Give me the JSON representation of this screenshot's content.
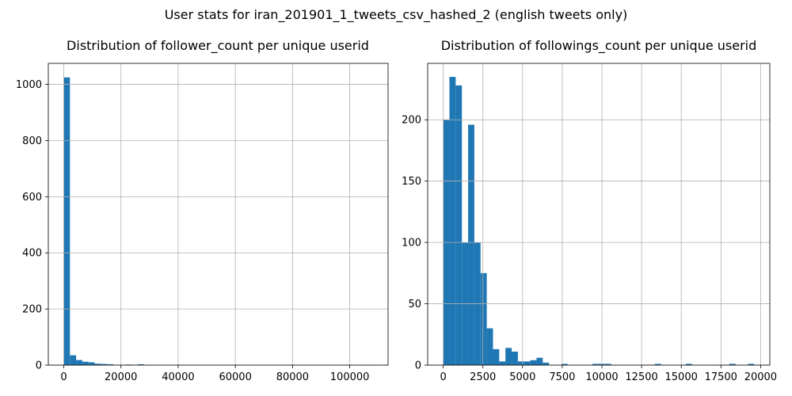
{
  "figure": {
    "suptitle": "User stats for iran_201901_1_tweets_csv_hashed_2 (english tweets only)",
    "bar_color": "#1f77b4",
    "grid_color": "#b0b0b0"
  },
  "chart_data": [
    {
      "type": "bar",
      "kind": "histogram",
      "title": "Distribution of follower_count per unique userid",
      "xlabel": "",
      "ylabel": "",
      "grid": true,
      "xlim": [
        -5400,
        113400
      ],
      "ylim": [
        0,
        1075
      ],
      "bin_start": 0,
      "bin_width": 2160,
      "counts": [
        1025,
        35,
        18,
        12,
        10,
        5,
        4,
        3,
        0,
        0,
        2,
        0,
        3,
        0,
        0,
        0,
        0,
        0,
        0,
        0,
        0,
        0,
        0,
        0,
        0,
        0,
        0,
        0,
        0,
        0,
        0,
        0,
        0,
        0,
        0,
        0,
        0,
        0,
        0,
        0,
        0,
        0,
        0,
        0,
        0,
        0,
        0,
        0,
        0,
        1
      ],
      "xticks": [
        0,
        20000,
        40000,
        60000,
        80000,
        100000
      ],
      "xtick_labels": [
        "0",
        "20000",
        "40000",
        "60000",
        "80000",
        "100000"
      ],
      "yticks": [
        0,
        200,
        400,
        600,
        800,
        1000
      ],
      "ytick_labels": [
        "0",
        "200",
        "400",
        "600",
        "800",
        "1000"
      ]
    },
    {
      "type": "bar",
      "kind": "histogram",
      "title": "Distribution of followings_count per unique userid",
      "xlabel": "",
      "ylabel": "",
      "grid": true,
      "xlim": [
        -980,
        20580
      ],
      "ylim": [
        0,
        246
      ],
      "bin_start": 0,
      "bin_width": 392,
      "counts": [
        200,
        235,
        228,
        100,
        196,
        100,
        75,
        30,
        13,
        3,
        14,
        11,
        3,
        3,
        4,
        6,
        2,
        0,
        0,
        1,
        0,
        0,
        0,
        0,
        1,
        1,
        1,
        0,
        0,
        0,
        0,
        0,
        0,
        0,
        1,
        0,
        0,
        0,
        0,
        1,
        0,
        0,
        0,
        0,
        0,
        0,
        1,
        0,
        0,
        1
      ],
      "xticks": [
        0,
        2500,
        5000,
        7500,
        10000,
        12500,
        15000,
        17500,
        20000
      ],
      "xtick_labels": [
        "0",
        "2500",
        "5000",
        "7500",
        "10000",
        "12500",
        "15000",
        "17500",
        "20000"
      ],
      "yticks": [
        0,
        50,
        100,
        150,
        200
      ],
      "ytick_labels": [
        "0",
        "50",
        "100",
        "150",
        "200"
      ]
    }
  ]
}
